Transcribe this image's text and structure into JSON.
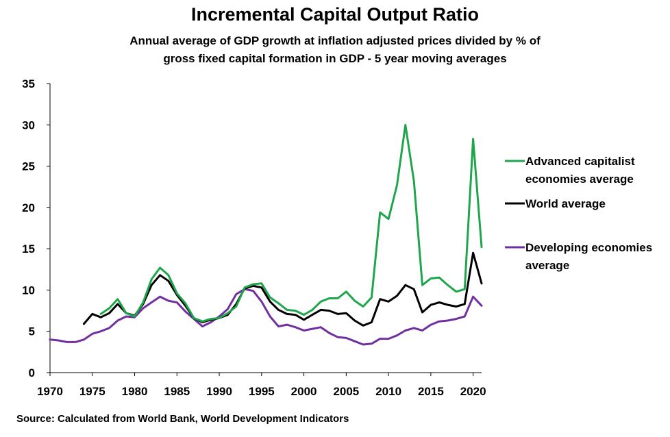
{
  "chart_data": {
    "type": "line",
    "title": "Incremental Capital Output Ratio",
    "subtitle": "Annual average of GDP growth at inflation adjusted prices divided by % of gross fixed capital formation in GDP - 5 year moving averages",
    "source": "Source: Calculated from World Bank, World Development Indicators",
    "xlabel": "",
    "ylabel": "",
    "xlim": [
      1970,
      2021
    ],
    "ylim": [
      0,
      35
    ],
    "x_ticks": [
      1970,
      1975,
      1980,
      1985,
      1990,
      1995,
      2000,
      2005,
      2010,
      2015,
      2020
    ],
    "y_ticks": [
      0,
      5,
      10,
      15,
      20,
      25,
      30,
      35
    ],
    "grid": false,
    "legend_position": "right",
    "series": [
      {
        "name": "Advanced capitalist economies average",
        "color": "#1fa64c",
        "start_year": 1976,
        "values": [
          7.1,
          7.8,
          8.9,
          7.2,
          6.8,
          8.5,
          11.3,
          12.7,
          11.8,
          9.6,
          8.4,
          6.6,
          6.2,
          6.5,
          6.6,
          7.2,
          8.0,
          10.3,
          10.7,
          10.8,
          9.1,
          8.4,
          7.6,
          7.5,
          7.0,
          7.6,
          8.6,
          9.0,
          9.0,
          9.8,
          8.7,
          8.0,
          9.1,
          19.4,
          18.6,
          22.7,
          30.0,
          23.2,
          10.6,
          11.4,
          11.5,
          10.6,
          9.8,
          10.1,
          28.3,
          15.2
        ]
      },
      {
        "name": "World average",
        "color": "#000000",
        "start_year": 1974,
        "values": [
          5.9,
          7.1,
          6.7,
          7.2,
          8.3,
          7.2,
          6.9,
          8.3,
          10.6,
          11.8,
          11.1,
          9.4,
          8.1,
          6.6,
          6.1,
          6.4,
          6.6,
          7.0,
          8.3,
          10.2,
          10.5,
          10.3,
          8.6,
          7.6,
          7.1,
          7.0,
          6.4,
          7.0,
          7.6,
          7.5,
          7.1,
          7.2,
          6.3,
          5.7,
          6.1,
          8.9,
          8.6,
          9.3,
          10.6,
          10.1,
          7.3,
          8.2,
          8.5,
          8.2,
          8.0,
          8.3,
          14.5,
          10.8
        ]
      },
      {
        "name": "Developing economies average",
        "color": "#7030a0",
        "start_year": 1970,
        "values": [
          4.0,
          3.9,
          3.7,
          3.7,
          4.0,
          4.7,
          5.0,
          5.4,
          6.3,
          6.8,
          6.7,
          7.8,
          8.5,
          9.2,
          8.7,
          8.5,
          7.4,
          6.5,
          5.6,
          6.1,
          6.8,
          7.7,
          9.5,
          10.1,
          9.9,
          8.6,
          6.8,
          5.6,
          5.8,
          5.5,
          5.1,
          5.3,
          5.5,
          4.8,
          4.3,
          4.2,
          3.8,
          3.4,
          3.5,
          4.1,
          4.1,
          4.5,
          5.1,
          5.4,
          5.1,
          5.8,
          6.2,
          6.3,
          6.5,
          6.8,
          9.2,
          8.1
        ]
      }
    ]
  }
}
